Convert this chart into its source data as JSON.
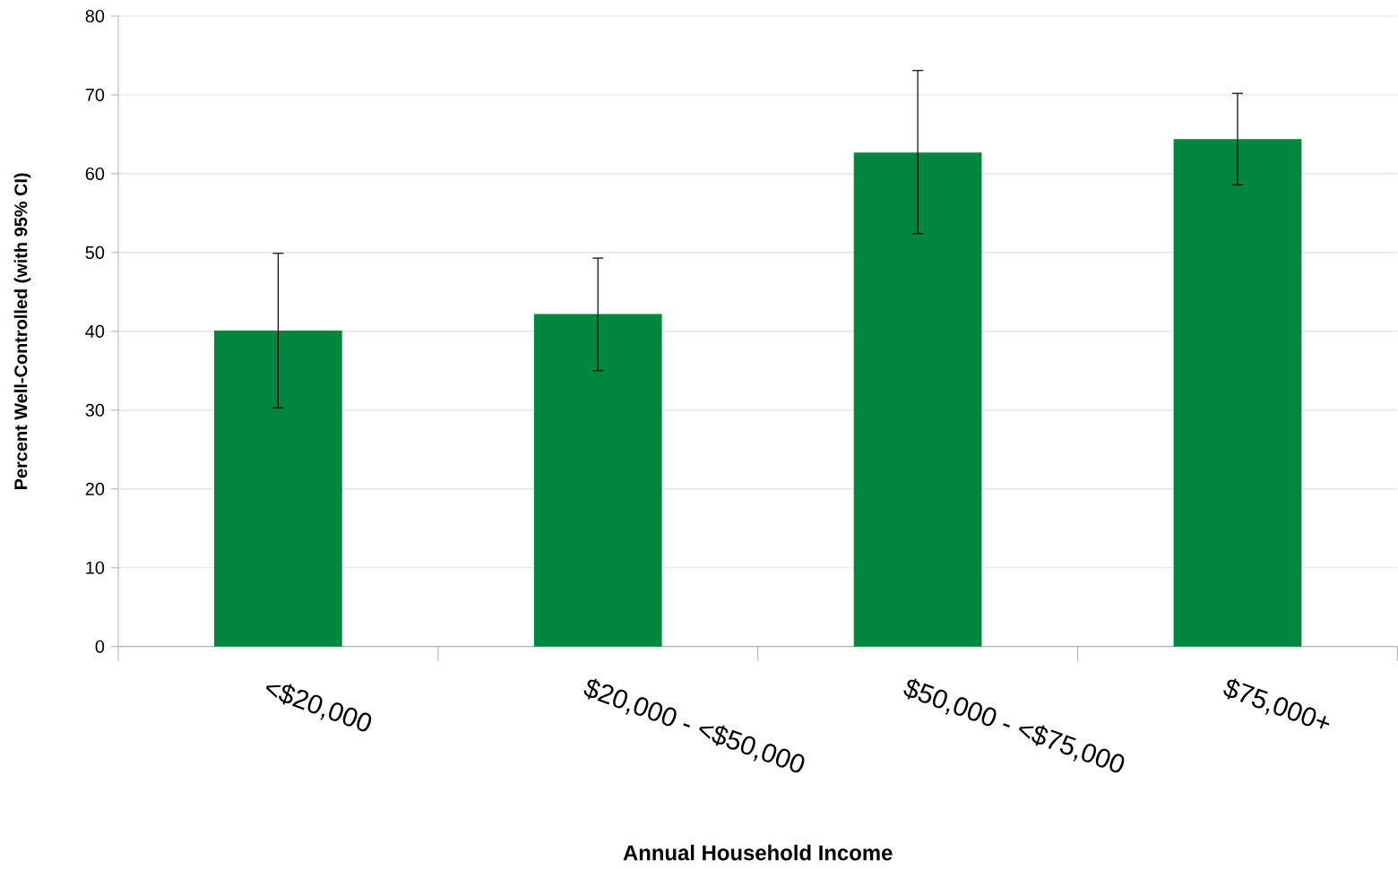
{
  "chart_data": {
    "type": "bar",
    "xlabel": "Annual Household Income",
    "ylabel": "Percent Well-Controlled  (with 95% CI)",
    "categories": [
      "<$20,000",
      "$20,000 - <$50,000",
      "$50,000 - <$75,000",
      "$75,000+"
    ],
    "values": [
      40.1,
      42.2,
      62.7,
      64.4
    ],
    "errors": [
      [
        30.3,
        49.9
      ],
      [
        35.0,
        49.3
      ],
      [
        52.4,
        73.1
      ],
      [
        58.6,
        70.2
      ]
    ],
    "color": "#00873e",
    "ylim": [
      0,
      80
    ],
    "yticks": [
      0,
      10,
      20,
      30,
      40,
      50,
      60,
      70,
      80
    ],
    "grid": "y"
  }
}
